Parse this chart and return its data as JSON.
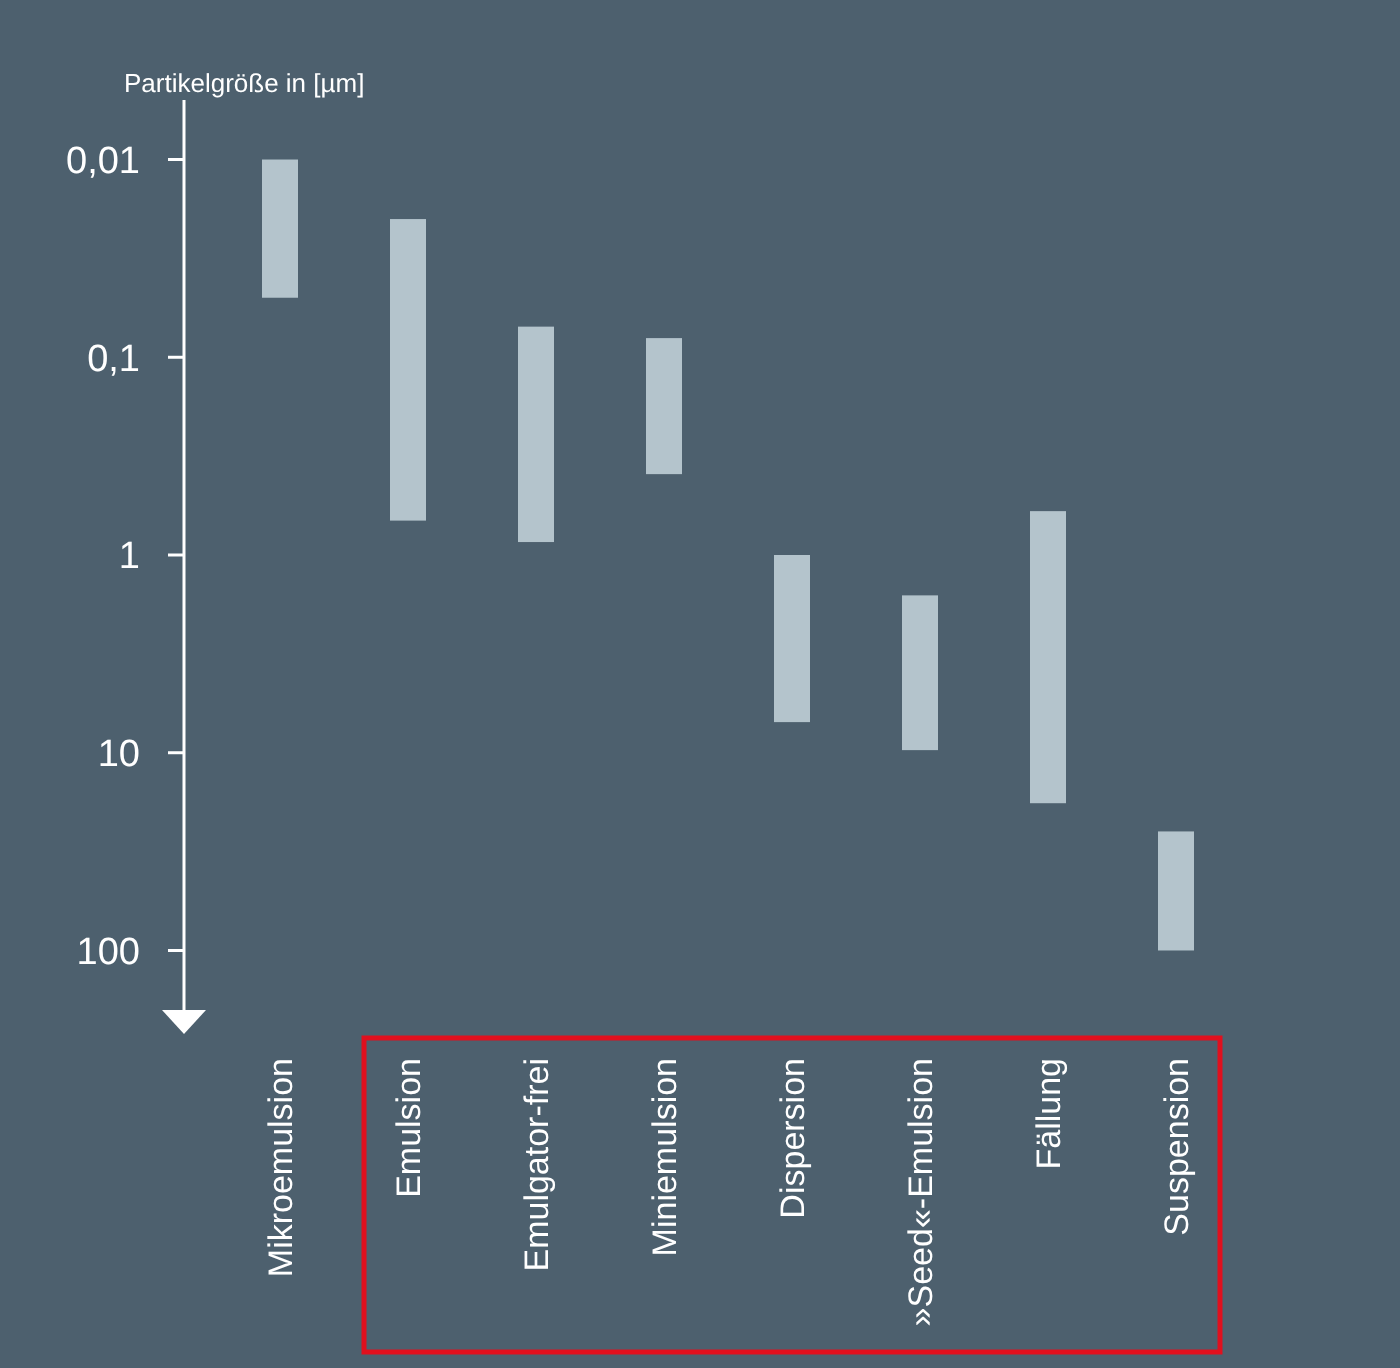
{
  "chart_data": {
    "type": "bar",
    "ylabel": "Partikelgröße in [µm]",
    "categories": [
      "Mikroemulsion",
      "Emulsion",
      "Emulgator-frei",
      "Miniemulsion",
      "Dispersion",
      "»Seed«-Emulsion",
      "Fällung",
      "Suspension"
    ],
    "series": [
      {
        "color": "#b4c4cc",
        "base": [
          0.01,
          0.02,
          0.07,
          0.08,
          1,
          1.6,
          0.6,
          25
        ],
        "values": [
          0.04,
          0.65,
          0.79,
          0.31,
          6,
          8.1,
          17.4,
          75
        ]
      }
    ],
    "log": true,
    "ylim": [
      200,
      0.005
    ],
    "yticks": [
      {
        "value": 0.01,
        "label": "0,01"
      },
      {
        "value": 0.1,
        "label": "0,1"
      },
      1,
      10,
      100
    ],
    "grid": false
  }
}
